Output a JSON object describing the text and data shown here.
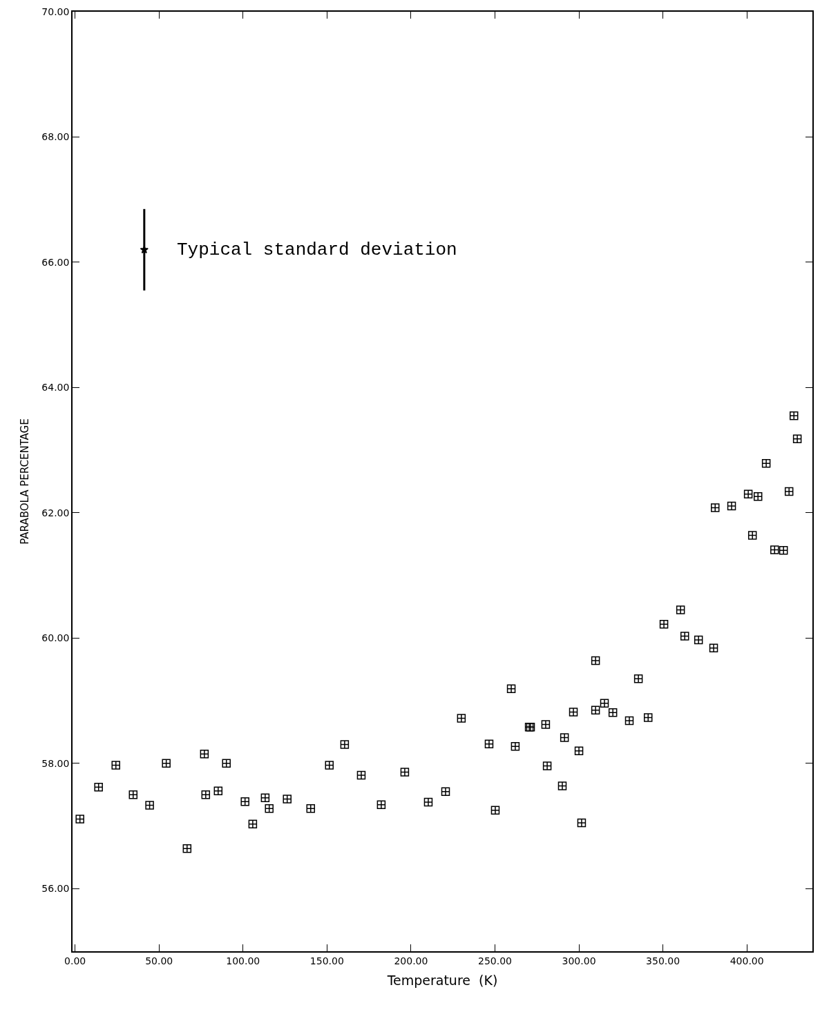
{
  "chart_data": {
    "type": "scatter",
    "xlabel": "Temperature  (K)",
    "ylabel": "PARABOLA PERCENTAGE",
    "xlim": [
      -1.5,
      439
    ],
    "ylim": [
      55,
      70
    ],
    "xticks": [
      {
        "value": 0,
        "label": "0.00"
      },
      {
        "value": 50,
        "label": "50.00"
      },
      {
        "value": 100,
        "label": "100.00"
      },
      {
        "value": 150,
        "label": "150.00"
      },
      {
        "value": 200,
        "label": "200.00"
      },
      {
        "value": 250,
        "label": "250.00"
      },
      {
        "value": 300,
        "label": "300.00"
      },
      {
        "value": 350,
        "label": "350.00"
      },
      {
        "value": 400,
        "label": "400.00"
      }
    ],
    "yticks": [
      {
        "value": 56,
        "label": "56.00"
      },
      {
        "value": 58,
        "label": "58.00"
      },
      {
        "value": 60,
        "label": "60.00"
      },
      {
        "value": 62,
        "label": "62.00"
      },
      {
        "value": 64,
        "label": "64.00"
      },
      {
        "value": 66,
        "label": "66.00"
      },
      {
        "value": 68,
        "label": "68.00"
      },
      {
        "value": 70,
        "label": "70.00"
      }
    ],
    "marker": "cross",
    "series": [
      {
        "color": "#000000",
        "x": [
          2.9,
          14.0,
          24.3,
          34.6,
          44.4,
          54.3,
          66.7,
          77.0,
          77.8,
          85.2,
          90.1,
          101.2,
          105.8,
          113.2,
          115.6,
          126.3,
          140.3,
          151.4,
          160.5,
          170.4,
          182.3,
          196.3,
          210.3,
          220.6,
          230.0,
          246.5,
          250.2,
          259.7,
          262.1,
          270.4,
          271.2,
          280.2,
          281.1,
          290.1,
          291.4,
          296.7,
          300.0,
          301.6,
          309.9,
          309.9,
          315.2,
          320.2,
          330.0,
          335.4,
          341.2,
          350.6,
          360.5,
          363.0,
          371.2,
          380.2,
          381.1,
          390.9,
          400.8,
          403.3,
          406.6,
          411.5,
          416.5,
          421.8,
          425.1,
          428.0,
          430.0
        ],
        "values": [
          57.11,
          57.62,
          57.97,
          57.5,
          57.33,
          58.0,
          56.64,
          58.15,
          57.5,
          57.56,
          58.0,
          57.39,
          57.03,
          57.45,
          57.28,
          57.43,
          57.28,
          57.97,
          58.3,
          57.81,
          57.34,
          57.86,
          57.38,
          57.55,
          58.72,
          58.31,
          57.25,
          59.19,
          58.27,
          58.58,
          58.58,
          58.62,
          57.96,
          57.64,
          58.41,
          58.82,
          58.2,
          57.05,
          59.64,
          58.85,
          58.96,
          58.81,
          58.68,
          59.35,
          58.73,
          60.22,
          60.45,
          60.03,
          59.97,
          59.84,
          62.08,
          62.11,
          62.3,
          61.64,
          62.26,
          62.79,
          61.41,
          61.4,
          62.34,
          63.55,
          63.18
        ]
      },
      {
        "color": "#000000",
        "marker": "star",
        "x": [
          41.2
        ],
        "values": [
          66.2
        ],
        "errors": [
          [
            65.55,
            66.85
          ]
        ]
      }
    ],
    "annotations": [
      {
        "text": "Typical standard deviation",
        "x": 41.2,
        "y": 66.2
      }
    ]
  }
}
